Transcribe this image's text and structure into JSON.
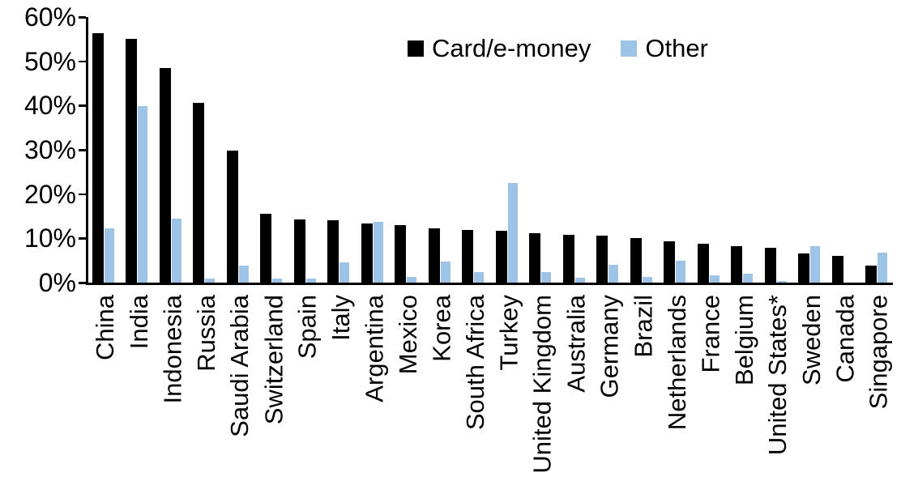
{
  "chart_data": {
    "type": "bar",
    "title": "",
    "xlabel": "",
    "ylabel": "",
    "ylim": [
      0,
      60
    ],
    "ytick_labels": [
      "0%",
      "10%",
      "20%",
      "30%",
      "40%",
      "50%",
      "60%"
    ],
    "grid": false,
    "legend_position": "top-center",
    "categories": [
      "China",
      "India",
      "Indonesia",
      "Russia",
      "Saudi Arabia",
      "Switzerland",
      "Spain",
      "Italy",
      "Argentina",
      "Mexico",
      "Korea",
      "South Africa",
      "Turkey",
      "United Kingdom",
      "Australia",
      "Germany",
      "Brazil",
      "Netherlands",
      "France",
      "Belgium",
      "United States*",
      "Sweden",
      "Canada",
      "Singapore"
    ],
    "series": [
      {
        "name": "Card/e-money",
        "color": "#000000",
        "values": [
          56.3,
          55.1,
          48.4,
          40.6,
          29.9,
          15.6,
          14.2,
          14.1,
          13.4,
          13.0,
          12.2,
          11.8,
          11.7,
          11.1,
          10.8,
          10.7,
          10.0,
          9.3,
          8.7,
          8.3,
          7.9,
          6.5,
          6.0,
          3.9
        ]
      },
      {
        "name": "Other",
        "color": "#9DC3E6",
        "values": [
          12.3,
          39.8,
          14.5,
          1.0,
          3.9,
          0.9,
          1.0,
          4.6,
          13.8,
          1.3,
          4.7,
          2.4,
          22.5,
          2.3,
          1.1,
          4.0,
          1.2,
          4.9,
          1.6,
          2.1,
          0.3,
          8.2,
          0.0,
          6.7
        ]
      }
    ],
    "axis_color": "#000000"
  }
}
